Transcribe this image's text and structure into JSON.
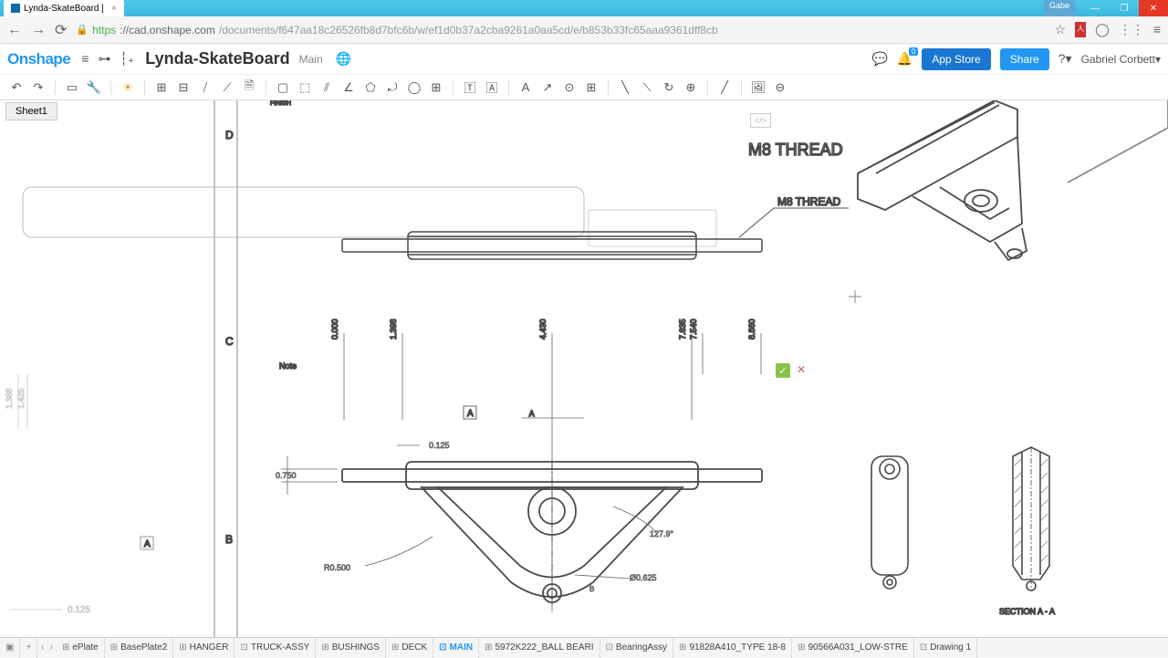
{
  "browser": {
    "tab_title": "Lynda-SkateBoard |",
    "user_badge": "Gabe",
    "url_https": "https",
    "url_domain": "://cad.onshape.com",
    "url_path": "/documents/f647aa18c26526fb8d7bfc6b/w/ef1d0b37a2cba9261a0aa5cd/e/b853b33fc65aaa9361dff8cb"
  },
  "header": {
    "logo": "Onshape",
    "doc_title": "Lynda-SkateBoard",
    "main_label": "Main",
    "notif_count": "0",
    "appstore": "App Store",
    "share": "Share",
    "username": "Gabriel Corbett"
  },
  "sheet_tab": "Sheet1",
  "drawing": {
    "callout_m8": "M8 THREAD",
    "datum_a": "A",
    "datum_a2": "A",
    "section_label": "SECTION A - A",
    "row_d": "D",
    "row_c": "C",
    "row_b": "B",
    "note": "Note",
    "finish": "FINISH",
    "dims": {
      "d1": "0.000",
      "d2": "1.398",
      "d3": "4.430",
      "d4": "7.635",
      "d5": "8.860",
      "d6": "7.540",
      "h1": "0.125",
      "h2": "0.750",
      "r1": "R0.500",
      "dia": "Ø0.625",
      "ang": "127.9°",
      "left1": "1.388",
      "left2": "1.425",
      "left3": "0.125"
    }
  },
  "bottom_tabs": [
    {
      "icon": "⊞",
      "label": "ePlate"
    },
    {
      "icon": "⊞",
      "label": "BasePlate2"
    },
    {
      "icon": "⊞",
      "label": "HANGER"
    },
    {
      "icon": "⊡",
      "label": "TRUCK-ASSY"
    },
    {
      "icon": "⊞",
      "label": "BUSHINGS"
    },
    {
      "icon": "⊞",
      "label": "DECK"
    },
    {
      "icon": "⊡",
      "label": "MAIN",
      "active": true
    },
    {
      "icon": "⊞",
      "label": "5972K222_BALL BEARI"
    },
    {
      "icon": "⊡",
      "label": "BearingAssy"
    },
    {
      "icon": "⊞",
      "label": "91828A410_TYPE 18-8"
    },
    {
      "icon": "⊞",
      "label": "90566A031_LOW-STRE"
    },
    {
      "icon": "⊡",
      "label": "Drawing 1"
    }
  ],
  "colors": {
    "stroke": "#4a4a4a",
    "light": "#b8b8b8",
    "dim": "#555555"
  }
}
